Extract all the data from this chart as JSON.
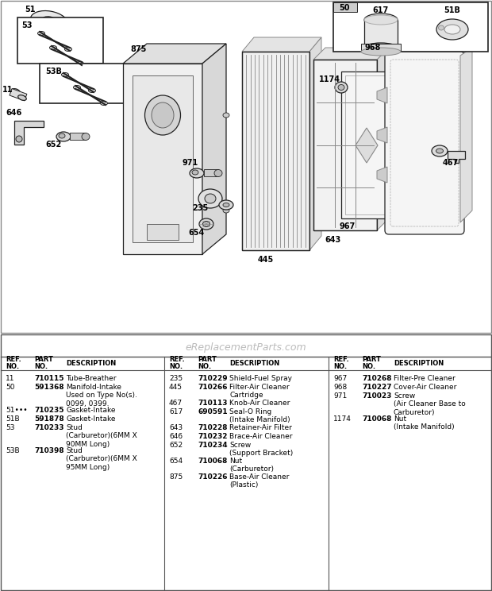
{
  "bg_color": "#ffffff",
  "watermark": "eReplacementParts.com",
  "entries1": [
    [
      "11",
      "710115",
      "Tube-Breather"
    ],
    [
      "50",
      "591368",
      "Manifold-Intake\nUsed on Type No(s).\n0099, 0399."
    ],
    [
      "51•••",
      "710235",
      "Gasket-Intake"
    ],
    [
      "51B",
      "591878",
      "Gasket-Intake"
    ],
    [
      "53",
      "710233",
      "Stud\n(Carburetor)(6MM X\n90MM Long)"
    ],
    [
      "53B",
      "710398",
      "Stud\n(Carburetor)(6MM X\n95MM Long)"
    ]
  ],
  "entries2": [
    [
      "235",
      "710229",
      "Shield-Fuel Spray"
    ],
    [
      "445",
      "710266",
      "Filter-Air Cleaner\nCartridge"
    ],
    [
      "467",
      "710113",
      "Knob-Air Cleaner"
    ],
    [
      "617",
      "690591",
      "Seal-O Ring\n(Intake Manifold)"
    ],
    [
      "643",
      "710228",
      "Retainer-Air Filter"
    ],
    [
      "646",
      "710232",
      "Brace-Air Cleaner"
    ],
    [
      "652",
      "710234",
      "Screw\n(Support Bracket)"
    ],
    [
      "654",
      "710068",
      "Nut\n(Carburetor)"
    ],
    [
      "875",
      "710226",
      "Base-Air Cleaner\n(Plastic)"
    ]
  ],
  "entries3": [
    [
      "967",
      "710268",
      "Filter-Pre Cleaner"
    ],
    [
      "968",
      "710227",
      "Cover-Air Cleaner"
    ],
    [
      "971",
      "710023",
      "Screw\n(Air Cleaner Base to\nCarburetor)"
    ],
    [
      "1174",
      "710068",
      "Nut\n(Intake Manifold)"
    ]
  ]
}
